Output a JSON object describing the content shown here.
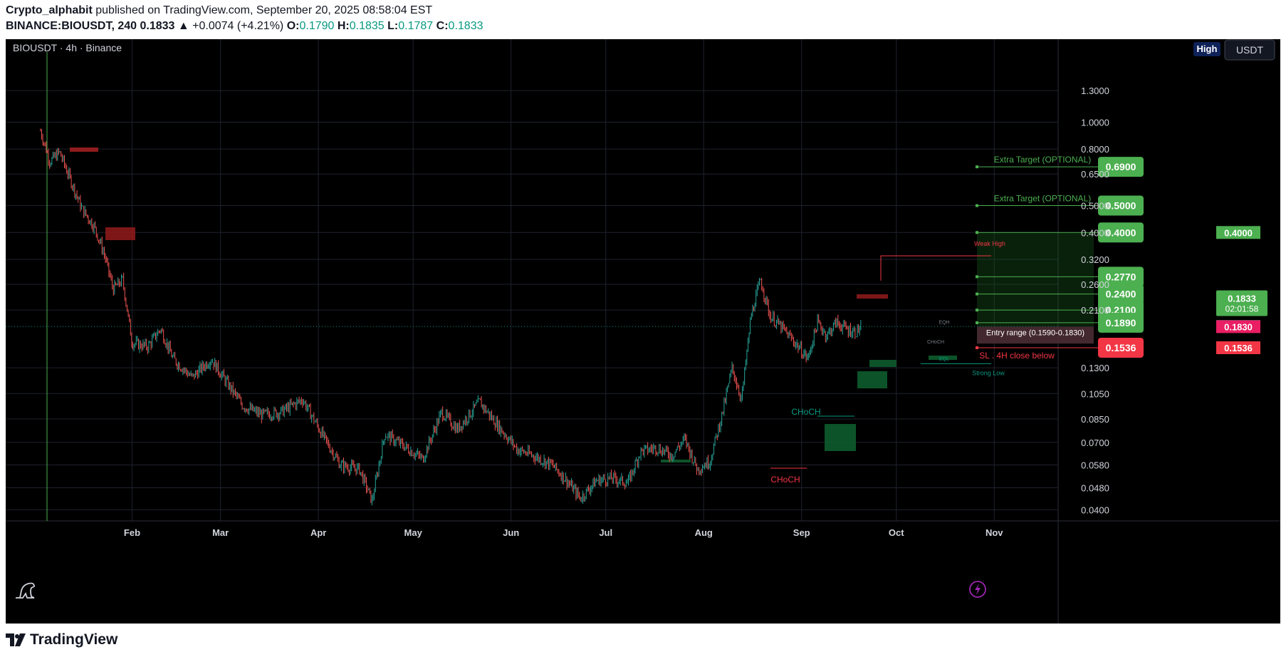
{
  "header": {
    "author": "Crypto_alphabit",
    "published_text": "published on TradingView.com, September 20, 2025 08:58:04 EST",
    "symbol_line": "BINANCE:BIOUSDT, 240",
    "last": "0.1833",
    "change": "▲ +0.0074 (+4.21%)",
    "o_label": "O:",
    "o_value": "0.1790",
    "h_label": "H:",
    "h_value": "0.1835",
    "l_label": "L:",
    "l_value": "0.1787",
    "c_label": "C:",
    "c_value": "0.1833"
  },
  "chart_title": "BIOUSDT · 4h · Binance",
  "toolbar": {
    "high_label": "High",
    "currency_label": "USDT"
  },
  "footer": {
    "brand": "TradingView"
  },
  "colors": {
    "background": "#000000",
    "up": "#26a69a",
    "down": "#ef5350",
    "green_label": "#4caf50",
    "red_label": "#f23645",
    "teal_label": "#089981",
    "pink_label": "#e91e63"
  },
  "chart_data": {
    "type": "candlestick",
    "scale": "log",
    "ylim": [
      0.038,
      1.6
    ],
    "x_ticks": [
      "Feb",
      "Mar",
      "Apr",
      "May",
      "Jun",
      "Jul",
      "Aug",
      "Sep",
      "Oct",
      "Nov"
    ],
    "y_ticks": [
      "1.3000",
      "1.0000",
      "0.8000",
      "0.6500",
      "0.5000",
      "0.4000",
      "0.3200",
      "0.2600",
      "0.2100",
      "0.1300",
      "0.1050",
      "0.0850",
      "0.0700",
      "0.0580",
      "0.0480",
      "0.0400"
    ],
    "price_path": [
      [
        "2025-01-03",
        0.93
      ],
      [
        "2025-01-06",
        0.72
      ],
      [
        "2025-01-09",
        0.78
      ],
      [
        "2025-01-13",
        0.6
      ],
      [
        "2025-01-16",
        0.49
      ],
      [
        "2025-01-20",
        0.42
      ],
      [
        "2025-01-23",
        0.34
      ],
      [
        "2025-01-26",
        0.25
      ],
      [
        "2025-01-29",
        0.27
      ],
      [
        "2025-02-01",
        0.16
      ],
      [
        "2025-02-06",
        0.155
      ],
      [
        "2025-02-10",
        0.18
      ],
      [
        "2025-02-14",
        0.14
      ],
      [
        "2025-02-20",
        0.12
      ],
      [
        "2025-02-26",
        0.14
      ],
      [
        "2025-03-03",
        0.115
      ],
      [
        "2025-03-08",
        0.095
      ],
      [
        "2025-03-14",
        0.088
      ],
      [
        "2025-03-20",
        0.09
      ],
      [
        "2025-03-27",
        0.1
      ],
      [
        "2025-04-03",
        0.072
      ],
      [
        "2025-04-08",
        0.058
      ],
      [
        "2025-04-14",
        0.056
      ],
      [
        "2025-04-18",
        0.043
      ],
      [
        "2025-04-22",
        0.075
      ],
      [
        "2025-04-28",
        0.068
      ],
      [
        "2025-05-04",
        0.061
      ],
      [
        "2025-05-10",
        0.09
      ],
      [
        "2025-05-15",
        0.078
      ],
      [
        "2025-05-22",
        0.098
      ],
      [
        "2025-05-28",
        0.08
      ],
      [
        "2025-06-03",
        0.066
      ],
      [
        "2025-06-09",
        0.062
      ],
      [
        "2025-06-14",
        0.058
      ],
      [
        "2025-06-18",
        0.052
      ],
      [
        "2025-06-23",
        0.044
      ],
      [
        "2025-06-28",
        0.051
      ],
      [
        "2025-07-03",
        0.052
      ],
      [
        "2025-07-08",
        0.05
      ],
      [
        "2025-07-12",
        0.065
      ],
      [
        "2025-07-17",
        0.067
      ],
      [
        "2025-07-22",
        0.063
      ],
      [
        "2025-07-26",
        0.072
      ],
      [
        "2025-07-30",
        0.056
      ],
      [
        "2025-08-03",
        0.06
      ],
      [
        "2025-08-07",
        0.09
      ],
      [
        "2025-08-10",
        0.13
      ],
      [
        "2025-08-13",
        0.1
      ],
      [
        "2025-08-16",
        0.2
      ],
      [
        "2025-08-19",
        0.27
      ],
      [
        "2025-08-22",
        0.2
      ],
      [
        "2025-08-26",
        0.18
      ],
      [
        "2025-08-30",
        0.16
      ],
      [
        "2025-09-03",
        0.14
      ],
      [
        "2025-09-06",
        0.19
      ],
      [
        "2025-09-09",
        0.17
      ],
      [
        "2025-09-12",
        0.19
      ],
      [
        "2025-09-15",
        0.18
      ],
      [
        "2025-09-18",
        0.175
      ],
      [
        "2025-09-20",
        0.1833
      ]
    ],
    "levels": [
      {
        "label": "0.6900",
        "value": 0.69,
        "type": "target",
        "note": "Extra Target (OPTIONAL)"
      },
      {
        "label": "0.5000",
        "value": 0.5,
        "type": "target",
        "note": "Extra Target (OPTIONAL)"
      },
      {
        "label": "0.4000",
        "value": 0.4,
        "type": "target",
        "note": ""
      },
      {
        "label": "0.2770",
        "value": 0.277,
        "type": "target",
        "note": ""
      },
      {
        "label": "0.2400",
        "value": 0.24,
        "type": "target",
        "note": ""
      },
      {
        "label": "0.2100",
        "value": 0.21,
        "type": "target",
        "note": ""
      },
      {
        "label": "0.1890",
        "value": 0.189,
        "type": "target",
        "note": ""
      },
      {
        "label": "0.1536",
        "value": 0.1536,
        "type": "stop",
        "note": "SL . 4H close below"
      }
    ],
    "entry_range": {
      "label": "Entry range (0.1590-0.1830)",
      "low": 0.159,
      "high": 0.183
    },
    "annotations": [
      "Weak High",
      "Strong Low",
      "CHoCH",
      "CHoCH",
      "EQL",
      "EQH",
      "CHoCH"
    ],
    "axis_labels": [
      {
        "text": "0.4000",
        "value": 0.4,
        "color": "#4caf50"
      },
      {
        "text": "0.1833",
        "value": 0.1833,
        "color": "#089981"
      },
      {
        "text": "0.1830",
        "value": 0.183,
        "color": "#e91e63"
      },
      {
        "text": "0.1536",
        "value": 0.1536,
        "color": "#f23645"
      }
    ],
    "price_badge": {
      "value": "0.1833",
      "countdown": "02:01:58"
    },
    "last_price": 0.1833
  }
}
